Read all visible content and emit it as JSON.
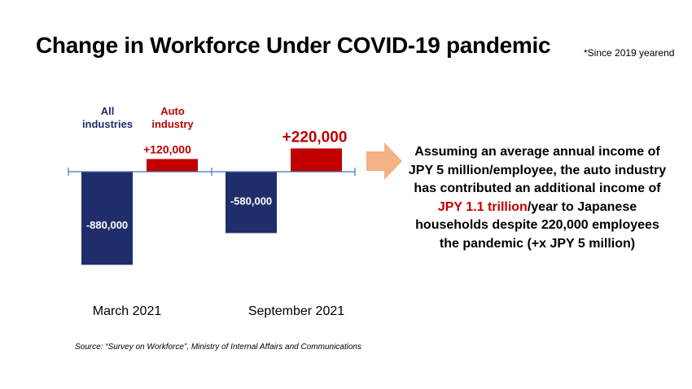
{
  "title": "Change in Workforce Under COVID-19 pandemic",
  "note": "*Since 2019 yearend",
  "legend": {
    "all_industries": "All industries",
    "auto_industry": "Auto industry"
  },
  "colors": {
    "all_industries": "#1f2d6b",
    "auto_industry": "#c00000",
    "arrow": "#f4b183",
    "axis": "#4472c4"
  },
  "chart_data": {
    "type": "bar",
    "categories": [
      "March 2021",
      "September 2021"
    ],
    "series": [
      {
        "name": "All industries",
        "values": [
          -880000,
          -580000
        ],
        "labels": [
          "-880,000",
          "-580,000"
        ]
      },
      {
        "name": "Auto industry",
        "values": [
          120000,
          220000
        ],
        "labels": [
          "+120,000",
          "+220,000"
        ]
      }
    ],
    "ylim": [
      -900000,
      300000
    ],
    "grid": false,
    "legend_position": "top-left"
  },
  "callout": {
    "part1": "Assuming an average annual income of JPY 5 million/employee, the auto industry has contributed an additional income of ",
    "highlight": "JPY 1.1 trillion",
    "part2": "/year to Japanese households despite 220,000 employees the pandemic (+x JPY 5 million)"
  },
  "source": "Source: “Survey on Workforce”, Ministry of Internal Affairs and Communications"
}
